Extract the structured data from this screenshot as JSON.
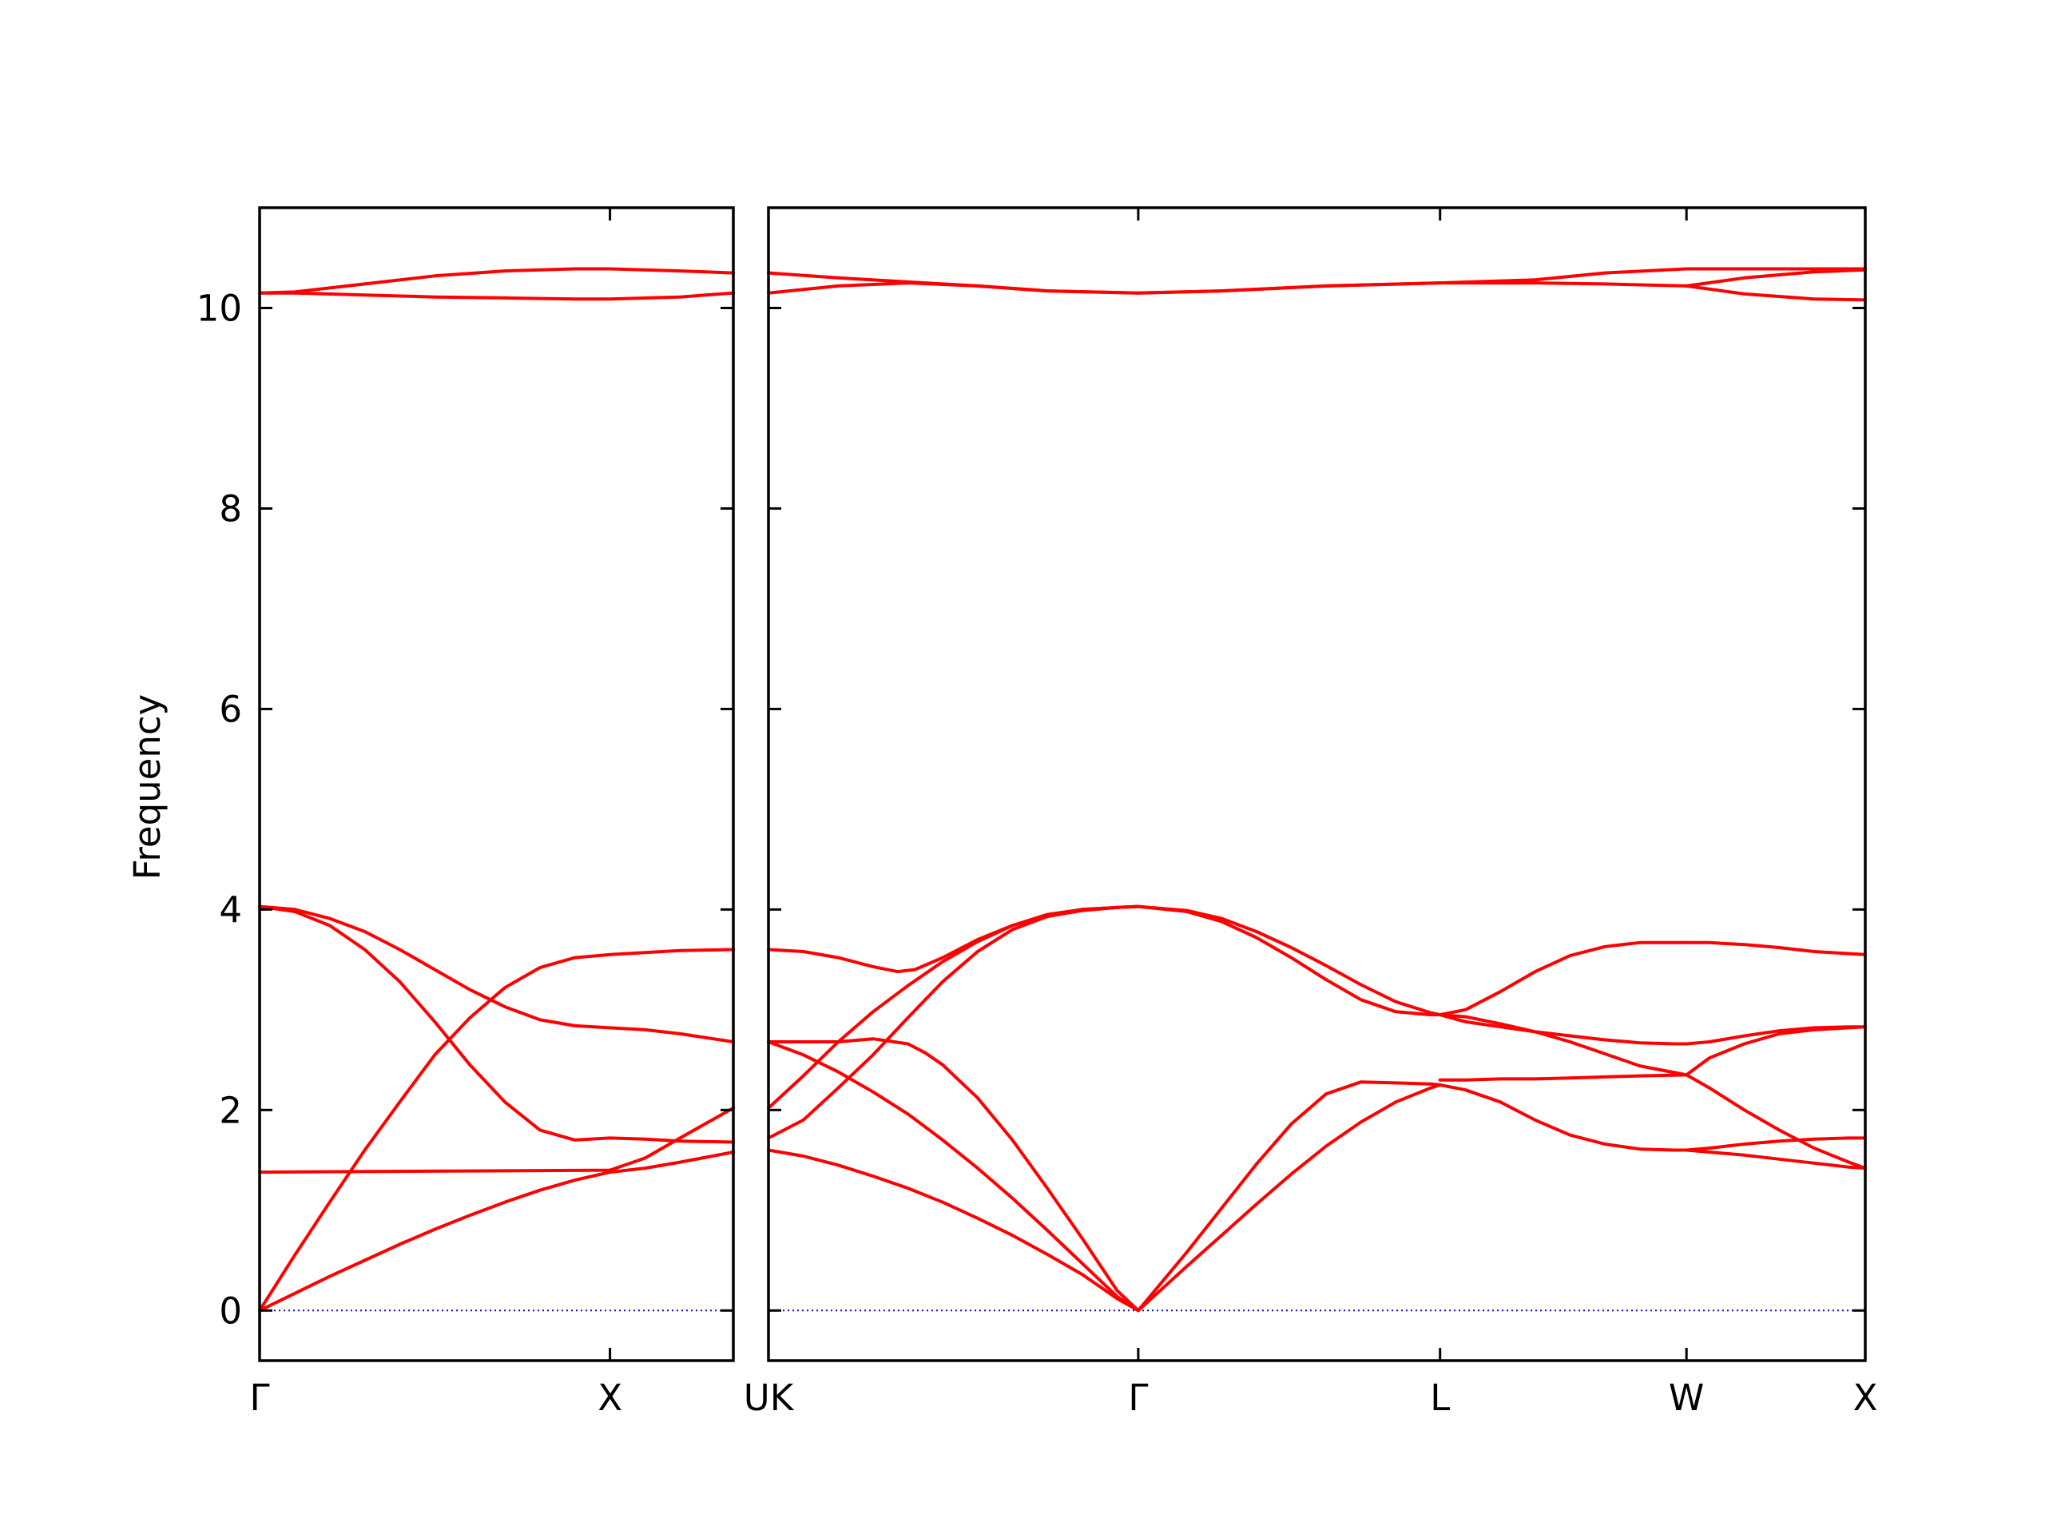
{
  "chart_data": {
    "type": "line",
    "ylabel": "Frequency",
    "ylim": [
      -0.5,
      11.0
    ],
    "yticks": [
      0,
      2,
      4,
      6,
      8,
      10
    ],
    "ytick_labels": [
      "0",
      "2",
      "4",
      "6",
      "8",
      "10"
    ],
    "band_color": "#ff0000",
    "zero_line_color": "#0000cc",
    "grid": false,
    "panels": [
      {
        "id": "gamma-x-u",
        "xlim": [
          0,
          1.352
        ],
        "ticks": [
          {
            "x": 0.0,
            "label": "Γ"
          },
          {
            "x": 1.0,
            "label": "X"
          }
        ],
        "bands": [
          {
            "name": "",
            "x": [
              0,
              0.1,
              0.2,
              0.3,
              0.4,
              0.5,
              0.6,
              0.7,
              0.8,
              0.9,
              1.0,
              1.1,
              1.2,
              1.352
            ],
            "y": [
              0,
              0.17,
              0.34,
              0.5,
              0.66,
              0.81,
              0.95,
              1.08,
              1.2,
              1.3,
              1.38,
              1.42,
              1.48,
              1.58
            ]
          },
          {
            "name": "",
            "x": [
              0,
              0.1,
              0.2,
              0.3,
              0.4,
              0.5,
              0.6,
              0.7,
              0.8,
              0.9,
              1.0,
              1.1,
              1.2,
              1.352
            ],
            "y": [
              0,
              0.55,
              1.08,
              1.6,
              2.08,
              2.55,
              2.92,
              3.22,
              3.42,
              3.52,
              3.55,
              3.57,
              3.59,
              3.6
            ]
          },
          {
            "name": "",
            "x": [
              0,
              0.1,
              0.2,
              0.3,
              0.4,
              0.5,
              0.6,
              0.7,
              0.8,
              0.9,
              1.0,
              1.1,
              1.2,
              1.352
            ],
            "y": [
              4.03,
              3.98,
              3.84,
              3.6,
              3.28,
              2.88,
              2.45,
              2.08,
              1.8,
              1.7,
              1.72,
              1.71,
              1.69,
              1.68
            ]
          },
          {
            "name": "",
            "x": [
              0,
              0.1,
              0.2,
              0.3,
              0.4,
              0.5,
              0.6,
              0.7,
              0.8,
              0.9,
              1.0,
              1.1,
              1.2,
              1.352
            ],
            "y": [
              4.03,
              4.0,
              3.91,
              3.78,
              3.6,
              3.4,
              3.2,
              3.03,
              2.9,
              2.84,
              2.82,
              2.8,
              2.76,
              2.68
            ]
          },
          {
            "name": "",
            "x": [
              0,
              1.0,
              1.1,
              1.2,
              1.352
            ],
            "y": [
              1.38,
              1.4,
              1.52,
              1.72,
              2.02
            ]
          },
          {
            "name": "",
            "x": [
              0,
              0.1,
              0.3,
              0.5,
              0.7,
              0.9,
              1.0,
              1.2,
              1.352
            ],
            "y": [
              10.15,
              10.16,
              10.24,
              10.32,
              10.37,
              10.39,
              10.39,
              10.37,
              10.35
            ]
          },
          {
            "name": "",
            "x": [
              0,
              0.1,
              0.3,
              0.5,
              0.7,
              0.9,
              1.0,
              1.2,
              1.352
            ],
            "y": [
              10.15,
              10.15,
              10.13,
              10.11,
              10.1,
              10.09,
              10.09,
              10.11,
              10.15
            ]
          }
        ]
      },
      {
        "id": "k-gamma-l-w-x",
        "xlim": [
          0,
          3.147
        ],
        "ticks": [
          {
            "x": 0.0,
            "label": "UK"
          },
          {
            "x": 1.061,
            "label": "Γ"
          },
          {
            "x": 1.927,
            "label": "L"
          },
          {
            "x": 2.634,
            "label": "W"
          },
          {
            "x": 3.147,
            "label": "X"
          }
        ],
        "bands": [
          {
            "name": "",
            "x": [
              0,
              0.1,
              0.2,
              0.3,
              0.4,
              0.5,
              0.6,
              0.7,
              0.8,
              0.9,
              1.0,
              1.061
            ],
            "y": [
              1.6,
              1.54,
              1.45,
              1.34,
              1.22,
              1.08,
              0.92,
              0.75,
              0.56,
              0.36,
              0.12,
              0
            ]
          },
          {
            "name": "",
            "x": [
              0,
              0.1,
              0.2,
              0.3,
              0.4,
              0.5,
              0.6,
              0.7,
              0.8,
              0.9,
              1.0,
              1.061
            ],
            "y": [
              2.68,
              2.55,
              2.38,
              2.18,
              1.96,
              1.7,
              1.42,
              1.12,
              0.8,
              0.47,
              0.14,
              0
            ]
          },
          {
            "name": "",
            "x": [
              0,
              0.1,
              0.2,
              0.3,
              0.4,
              0.45,
              0.5,
              0.6,
              0.7,
              0.8,
              0.9,
              1.0,
              1.061
            ],
            "y": [
              2.68,
              2.68,
              2.68,
              2.71,
              2.66,
              2.57,
              2.45,
              2.12,
              1.7,
              1.22,
              0.72,
              0.2,
              0
            ]
          },
          {
            "name": "",
            "x": [
              0,
              0.1,
              0.2,
              0.3,
              0.4,
              0.5,
              0.6,
              0.7,
              0.8,
              0.9,
              1.0,
              1.061
            ],
            "y": [
              1.72,
              1.9,
              2.22,
              2.55,
              2.92,
              3.28,
              3.58,
              3.8,
              3.93,
              3.99,
              4.02,
              4.03
            ]
          },
          {
            "name": "",
            "x": [
              0,
              0.1,
              0.2,
              0.3,
              0.4,
              0.5,
              0.6,
              0.7,
              0.8,
              0.9,
              1.0,
              1.061
            ],
            "y": [
              2.02,
              2.34,
              2.68,
              2.98,
              3.24,
              3.48,
              3.68,
              3.84,
              3.95,
              4.0,
              4.02,
              4.03
            ]
          },
          {
            "name": "",
            "x": [
              0,
              0.1,
              0.2,
              0.3,
              0.37,
              0.42,
              0.5,
              0.6,
              0.7,
              0.8,
              0.9,
              1.0,
              1.061
            ],
            "y": [
              3.6,
              3.58,
              3.52,
              3.43,
              3.38,
              3.4,
              3.52,
              3.7,
              3.84,
              3.94,
              4.0,
              4.02,
              4.03
            ]
          },
          {
            "name": "",
            "x": [
              1.061,
              1.2,
              1.3,
              1.4,
              1.5,
              1.6,
              1.7,
              1.8,
              1.9,
              1.927
            ],
            "y": [
              0,
              0.44,
              0.75,
              1.06,
              1.36,
              1.64,
              1.88,
              2.08,
              2.22,
              2.25
            ]
          },
          {
            "name": "",
            "x": [
              1.061,
              1.2,
              1.3,
              1.4,
              1.5,
              1.6,
              1.7,
              1.8,
              1.9,
              1.927
            ],
            "y": [
              0,
              0.58,
              1.02,
              1.46,
              1.86,
              2.16,
              2.28,
              2.27,
              2.26,
              2.25
            ]
          },
          {
            "name": "",
            "x": [
              1.061,
              1.2,
              1.3,
              1.4,
              1.5,
              1.6,
              1.7,
              1.8,
              1.9,
              1.927
            ],
            "y": [
              4.03,
              3.98,
              3.88,
              3.72,
              3.52,
              3.3,
              3.1,
              2.98,
              2.95,
              2.95
            ]
          },
          {
            "name": "",
            "x": [
              1.061,
              1.2,
              1.3,
              1.4,
              1.5,
              1.6,
              1.7,
              1.8,
              1.9,
              1.927
            ],
            "y": [
              4.03,
              3.99,
              3.91,
              3.78,
              3.62,
              3.44,
              3.25,
              3.08,
              2.97,
              2.95
            ]
          },
          {
            "name": "",
            "x": [
              1.927,
              2.0,
              2.1,
              2.2,
              2.3,
              2.4,
              2.5,
              2.634
            ],
            "y": [
              2.3,
              2.3,
              2.31,
              2.31,
              2.32,
              2.33,
              2.34,
              2.35
            ]
          },
          {
            "name": "",
            "x": [
              1.927,
              2.0,
              2.1,
              2.2,
              2.3,
              2.4,
              2.5,
              2.6,
              2.634
            ],
            "y": [
              2.25,
              2.2,
              2.08,
              1.9,
              1.75,
              1.66,
              1.61,
              1.6,
              1.6
            ]
          },
          {
            "name": "",
            "x": [
              1.927,
              2.0,
              2.1,
              2.2,
              2.3,
              2.4,
              2.5,
              2.634
            ],
            "y": [
              2.95,
              2.93,
              2.86,
              2.78,
              2.68,
              2.56,
              2.44,
              2.35
            ]
          },
          {
            "name": "",
            "x": [
              1.927,
              2.0,
              2.1,
              2.2,
              2.3,
              2.4,
              2.5,
              2.6,
              2.634
            ],
            "y": [
              2.95,
              2.88,
              2.83,
              2.78,
              2.74,
              2.7,
              2.67,
              2.66,
              2.66
            ]
          },
          {
            "name": "",
            "x": [
              1.927,
              2.0,
              2.1,
              2.2,
              2.3,
              2.4,
              2.5,
              2.6,
              2.634
            ],
            "y": [
              2.95,
              3.0,
              3.18,
              3.38,
              3.54,
              3.63,
              3.67,
              3.67,
              3.67
            ]
          },
          {
            "name": "",
            "x": [
              2.634,
              2.7,
              2.8,
              2.9,
              3.0,
              3.1,
              3.147
            ],
            "y": [
              3.67,
              3.67,
              3.65,
              3.62,
              3.58,
              3.56,
              3.55
            ]
          },
          {
            "name": "",
            "x": [
              2.634,
              2.7,
              2.8,
              2.9,
              3.0,
              3.1,
              3.147
            ],
            "y": [
              2.66,
              2.68,
              2.74,
              2.79,
              2.82,
              2.83,
              2.83
            ]
          },
          {
            "name": "",
            "x": [
              2.634,
              2.7,
              2.8,
              2.9,
              3.0,
              3.1,
              3.147
            ],
            "y": [
              2.35,
              2.52,
              2.66,
              2.76,
              2.8,
              2.82,
              2.83
            ]
          },
          {
            "name": "",
            "x": [
              2.634,
              2.7,
              2.8,
              2.9,
              3.0,
              3.1,
              3.147
            ],
            "y": [
              2.35,
              2.22,
              2.0,
              1.8,
              1.62,
              1.48,
              1.42
            ]
          },
          {
            "name": "",
            "x": [
              2.634,
              2.7,
              2.8,
              2.9,
              3.0,
              3.1,
              3.147
            ],
            "y": [
              1.6,
              1.58,
              1.55,
              1.51,
              1.47,
              1.43,
              1.42
            ]
          },
          {
            "name": "",
            "x": [
              2.634,
              2.7,
              2.8,
              2.9,
              3.0,
              3.1,
              3.147
            ],
            "y": [
              1.6,
              1.62,
              1.66,
              1.69,
              1.71,
              1.72,
              1.72
            ]
          },
          {
            "name": "",
            "x": [
              0,
              0.2,
              0.4,
              0.6,
              0.8,
              1.061,
              1.3,
              1.6,
              1.927,
              2.2,
              2.4,
              2.634,
              2.8,
              3.0,
              3.147
            ],
            "y": [
              10.35,
              10.3,
              10.26,
              10.22,
              10.17,
              10.15,
              10.17,
              10.22,
              10.25,
              10.25,
              10.24,
              10.22,
              10.3,
              10.36,
              10.38
            ]
          },
          {
            "name": "",
            "x": [
              0,
              0.2,
              0.4,
              0.6,
              0.8,
              1.061,
              1.3,
              1.6,
              1.927,
              2.2,
              2.4,
              2.634,
              2.8,
              3.0,
              3.147
            ],
            "y": [
              10.15,
              10.22,
              10.25,
              10.22,
              10.17,
              10.15,
              10.17,
              10.22,
              10.25,
              10.28,
              10.35,
              10.39,
              10.39,
              10.39,
              10.39
            ]
          },
          {
            "name": "",
            "x": [
              2.634,
              2.8,
              3.0,
              3.147
            ],
            "y": [
              10.22,
              10.14,
              10.09,
              10.08
            ]
          }
        ]
      }
    ]
  }
}
